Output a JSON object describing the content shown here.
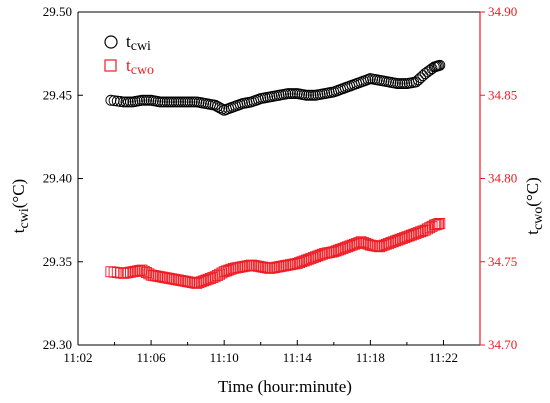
{
  "chart_data": {
    "type": "scatter",
    "title": "",
    "xlabel": "Time (hour:minute)",
    "ylabel_left": "t_cwi(°C)",
    "ylabel_right": "t_cwo(°C)",
    "x_unit": "minutes after 11:00",
    "xlim": [
      2,
      24
    ],
    "x_ticks": [
      {
        "value": 2,
        "label": "11:02"
      },
      {
        "value": 6,
        "label": "11:06"
      },
      {
        "value": 10,
        "label": "11:10"
      },
      {
        "value": 14,
        "label": "11:14"
      },
      {
        "value": 18,
        "label": "11:18"
      },
      {
        "value": 22,
        "label": "11:22"
      }
    ],
    "ylim_left": [
      29.3,
      29.5
    ],
    "y_ticks_left": [
      "29.30",
      "29.35",
      "29.40",
      "29.45",
      "29.50"
    ],
    "ylim_right": [
      34.7,
      34.9
    ],
    "y_ticks_right": [
      "34.70",
      "34.75",
      "34.80",
      "34.85",
      "34.90"
    ],
    "grid": false,
    "legend_position": "top-left",
    "series": [
      {
        "name": "tcwi",
        "axis": "left",
        "marker": "circle",
        "color": "#000000",
        "x": [
          3.8,
          4.5,
          5.0,
          5.5,
          6.0,
          6.5,
          7.0,
          7.5,
          8.0,
          8.5,
          9.0,
          9.5,
          10.0,
          10.5,
          11.0,
          11.5,
          12.0,
          12.5,
          13.0,
          13.5,
          14.0,
          14.5,
          15.0,
          15.5,
          16.0,
          16.5,
          17.0,
          17.5,
          18.0,
          18.5,
          19.0,
          19.5,
          20.0,
          20.5,
          21.0,
          21.5,
          21.8
        ],
        "y": [
          29.447,
          29.446,
          29.446,
          29.447,
          29.447,
          29.446,
          29.446,
          29.446,
          29.446,
          29.446,
          29.445,
          29.444,
          29.441,
          29.443,
          29.445,
          29.446,
          29.448,
          29.449,
          29.45,
          29.451,
          29.451,
          29.45,
          29.45,
          29.451,
          29.452,
          29.454,
          29.456,
          29.458,
          29.46,
          29.459,
          29.458,
          29.457,
          29.457,
          29.458,
          29.463,
          29.467,
          29.468
        ]
      },
      {
        "name": "tcwo",
        "axis": "right",
        "marker": "square",
        "color": "#ee1c24",
        "x": [
          3.8,
          4.5,
          5.0,
          5.5,
          6.0,
          6.5,
          7.0,
          7.5,
          8.0,
          8.5,
          9.0,
          9.5,
          10.0,
          10.5,
          11.0,
          11.5,
          12.0,
          12.5,
          13.0,
          13.5,
          14.0,
          14.5,
          15.0,
          15.5,
          16.0,
          16.5,
          17.0,
          17.5,
          18.0,
          18.5,
          19.0,
          19.5,
          20.0,
          20.5,
          21.0,
          21.5,
          21.8
        ],
        "y": [
          34.744,
          34.743,
          34.744,
          34.745,
          34.742,
          34.741,
          34.74,
          34.739,
          34.738,
          34.737,
          34.739,
          34.741,
          34.744,
          34.746,
          34.747,
          34.748,
          34.747,
          34.746,
          34.747,
          34.748,
          34.749,
          34.751,
          34.753,
          34.755,
          34.756,
          34.758,
          34.76,
          34.762,
          34.76,
          34.759,
          34.761,
          34.763,
          34.765,
          34.767,
          34.769,
          34.772,
          34.773
        ]
      }
    ]
  }
}
